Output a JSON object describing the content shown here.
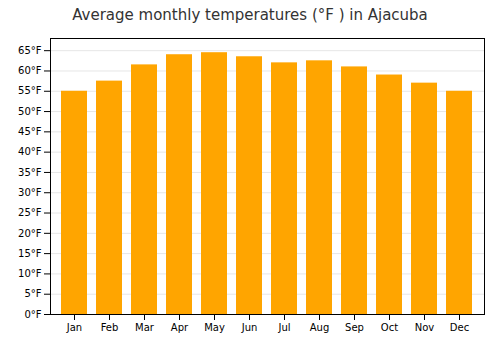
{
  "chart_data": {
    "type": "bar",
    "title": "Average monthly temperatures (°F ) in Ajacuba",
    "categories": [
      "Jan",
      "Feb",
      "Mar",
      "Apr",
      "May",
      "Jun",
      "Jul",
      "Aug",
      "Sep",
      "Oct",
      "Nov",
      "Dec"
    ],
    "values": [
      55.0,
      57.5,
      61.5,
      64.0,
      64.5,
      63.5,
      62.0,
      62.5,
      61.0,
      59.0,
      57.0,
      55.0
    ],
    "color": "#FFA500",
    "ylim": [
      0,
      68
    ],
    "yticks": [
      {
        "value": 0,
        "label": "0°F"
      },
      {
        "value": 5,
        "label": "5°F"
      },
      {
        "value": 10,
        "label": "10°F"
      },
      {
        "value": 15,
        "label": "15°F"
      },
      {
        "value": 20,
        "label": "20°F"
      },
      {
        "value": 25,
        "label": "25°F"
      },
      {
        "value": 30,
        "label": "30°F"
      },
      {
        "value": 35,
        "label": "35°F"
      },
      {
        "value": 40,
        "label": "40°F"
      },
      {
        "value": 45,
        "label": "45°F"
      },
      {
        "value": 50,
        "label": "50°F"
      },
      {
        "value": 55,
        "label": "55°F"
      },
      {
        "value": 60,
        "label": "60°F"
      },
      {
        "value": 65,
        "label": "65°F"
      }
    ],
    "grid": true
  }
}
